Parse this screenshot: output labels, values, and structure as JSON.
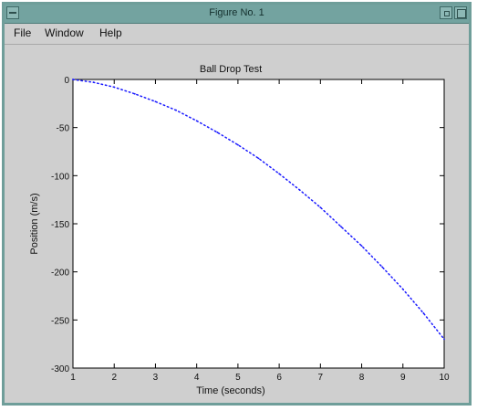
{
  "window": {
    "title": "Figure No. 1"
  },
  "menu": {
    "items": [
      "File",
      "Window",
      "Help"
    ]
  },
  "chart_data": {
    "type": "line",
    "title": "Ball Drop Test",
    "xlabel": "Time (seconds)",
    "ylabel": "Position (m/s)",
    "xlim": [
      1,
      10
    ],
    "ylim": [
      -300,
      0
    ],
    "xticks": [
      1,
      2,
      3,
      4,
      5,
      6,
      7,
      8,
      9,
      10
    ],
    "yticks": [
      0,
      -50,
      -100,
      -150,
      -200,
      -250,
      -300
    ],
    "series": [
      {
        "color": "#1a1aff",
        "style": "dotted",
        "x": [
          1,
          1.5,
          2,
          2.5,
          3,
          3.5,
          4,
          4.5,
          5,
          5.5,
          6,
          6.5,
          7,
          7.5,
          8,
          8.5,
          9,
          9.5,
          10
        ],
        "y": [
          0,
          -3,
          -8,
          -15,
          -23,
          -32,
          -43,
          -55,
          -68,
          -82,
          -98,
          -115,
          -133,
          -153,
          -173,
          -195,
          -218,
          -243,
          -270
        ]
      }
    ]
  }
}
